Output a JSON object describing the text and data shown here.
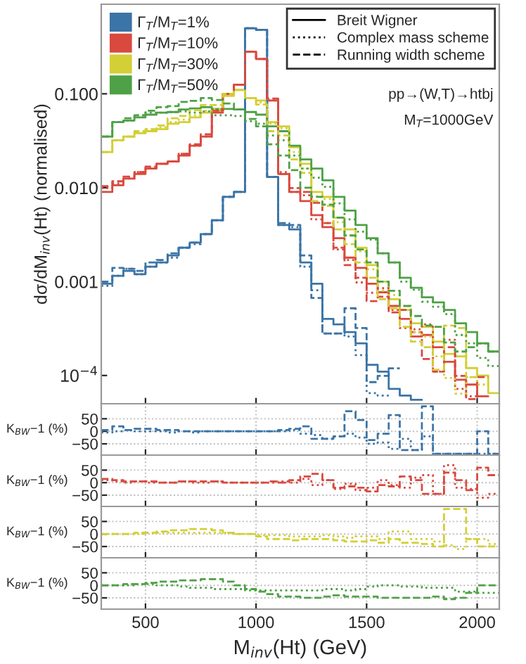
{
  "chart_data": [
    {
      "type": "step",
      "ylabel": "dσ/dM$_{inv}$(Ht) (normalised)",
      "log": "y",
      "legend": "top left",
      "tick_labels": "y",
      "x": [
        300,
        350,
        400,
        450,
        500,
        550,
        600,
        650,
        700,
        750,
        800,
        850,
        900,
        950,
        1000,
        1050,
        1100,
        1150,
        1200,
        1250,
        1300,
        1350,
        1400,
        1450,
        1500,
        1550,
        1600,
        1650,
        1700,
        1750,
        1800,
        1850,
        1900,
        1950,
        2000,
        2050,
        2100
      ],
      "xlim": [
        300,
        2100
      ],
      "xticks": [
        500,
        1000,
        1500,
        2000
      ],
      "ylim": [
        5e-05,
        0.9
      ],
      "yticks": [
        {
          "value": 0.1,
          "label": "0.100"
        },
        {
          "value": 0.01,
          "label": "0.010"
        },
        {
          "value": 0.001,
          "label": "0.001"
        },
        {
          "value": 0.0001,
          "label": "10$^{−4}$"
        }
      ],
      "annotations": [
        "Breit Wigner",
        "Complex mass scheme",
        "Running width scheme",
        "pp→(W,T)→htbj",
        "M$_{T}$=1000GeV"
      ],
      "series": [
        {
          "name": "Γ$_{T}$/M$_{T}$=1%",
          "color": "#3b74a6",
          "line_style": "solid",
          "x": [
            300,
            350,
            400,
            450,
            500,
            550,
            600,
            650,
            700,
            750,
            800,
            850,
            900,
            950,
            1000,
            1050,
            1100,
            1150,
            1200,
            1250,
            1300,
            1350,
            1400,
            1450,
            1500,
            1550,
            1600,
            1650,
            1700,
            1750
          ],
          "values": [
            0.00095,
            0.00115,
            0.0013,
            0.0012,
            0.00144,
            0.0016,
            0.0019,
            0.0023,
            0.0026,
            0.0032,
            0.0045,
            0.008,
            0.009,
            0.5,
            0.48,
            0.013,
            0.004,
            0.0036,
            0.0016,
            0.00095,
            0.0004,
            0.00035,
            0.00029,
            0.00022,
            0.00013,
            0.00011,
            7.2e-05,
            6.1e-05,
            5.5e-05,
            5.5e-05
          ]
        },
        {
          "name": "Γ$_{T}$/M$_{T}$=10%",
          "color": "#d9493e",
          "line_style": "solid",
          "x": [
            300,
            350,
            400,
            450,
            500,
            550,
            600,
            650,
            700,
            750,
            800,
            850,
            900,
            950,
            1000,
            1050,
            1100,
            1150,
            1200,
            1250,
            1300,
            1350,
            1400,
            1450,
            1500,
            1550,
            1600,
            1650,
            1700,
            1750,
            1800,
            1850,
            1900,
            1950,
            2000,
            2050
          ],
          "values": [
            0.009,
            0.0106,
            0.0125,
            0.014,
            0.016,
            0.018,
            0.019,
            0.022,
            0.028,
            0.035,
            0.063,
            0.1,
            0.125,
            0.28,
            0.235,
            0.085,
            0.014,
            0.009,
            0.0072,
            0.0051,
            0.0038,
            0.0029,
            0.0018,
            0.0014,
            0.00095,
            0.00077,
            0.00055,
            0.0004,
            0.00026,
            0.00027,
            0.0002,
            0.00014,
            9e-05,
            8e-05,
            6e-05,
            6e-05
          ]
        },
        {
          "name": "Γ$_{T}$/M$_{T}$=30%",
          "color": "#d3cf36",
          "line_style": "solid",
          "values": [
            0.024,
            0.032,
            0.035,
            0.038,
            0.04,
            0.042,
            0.048,
            0.05,
            0.056,
            0.063,
            0.066,
            0.095,
            0.11,
            0.09,
            0.085,
            0.05,
            0.045,
            0.027,
            0.018,
            0.009,
            0.008,
            0.0048,
            0.0036,
            0.0023,
            0.0015,
            0.001,
            0.00065,
            0.0005,
            0.00036,
            0.00033,
            0.00023,
            0.00017,
            0.00016,
            0.00012,
            0.0001,
            6.5e-05,
            6.5e-05
          ]
        },
        {
          "name": "Γ$_{T}$/M$_{T}$=50%",
          "color": "#4ea146",
          "line_style": "solid",
          "values": [
            0.035,
            0.05,
            0.052,
            0.056,
            0.06,
            0.063,
            0.064,
            0.068,
            0.07,
            0.072,
            0.069,
            0.069,
            0.068,
            0.064,
            0.06,
            0.045,
            0.04,
            0.028,
            0.02,
            0.016,
            0.012,
            0.008,
            0.0057,
            0.004,
            0.0029,
            0.002,
            0.0016,
            0.0011,
            0.00086,
            0.00068,
            0.0006,
            0.0005,
            0.00036,
            0.00029,
            0.00022,
            0.00018,
            0.00018
          ]
        },
        {
          "color": "#3b74a6",
          "line_style": "dotted",
          "x": [
            300,
            350,
            400,
            450,
            500,
            550,
            600,
            650,
            700,
            750,
            800,
            850,
            900,
            950,
            1000,
            1050,
            1100,
            1150,
            1200,
            1250,
            1300,
            1350,
            1400,
            1450,
            1500,
            1550,
            1600
          ],
          "values": [
            0.0009,
            0.00115,
            0.00137,
            0.0012,
            0.00144,
            0.0016,
            0.0018,
            0.0023,
            0.0025,
            0.0032,
            0.0045,
            0.008,
            0.009,
            0.5,
            0.48,
            0.013,
            0.004,
            0.0038,
            0.00144,
            0.00081,
            0.00028,
            0.00028,
            0.00026,
            0.000165,
            6.5e-05,
            6.1e-05,
            6.1e-05
          ]
        },
        {
          "color": "#3b74a6",
          "line_style": "dashed",
          "x": [
            300,
            350,
            400,
            450,
            500,
            550,
            600,
            650,
            700,
            750,
            800,
            850,
            900,
            950,
            1000,
            1050,
            1100,
            1150,
            1200,
            1250,
            1300,
            1350,
            1400,
            1450,
            1500,
            1550,
            1600,
            1650
          ],
          "values": [
            0.001,
            0.0014,
            0.00137,
            0.0013,
            0.0016,
            0.0017,
            0.002,
            0.0023,
            0.0026,
            0.0032,
            0.0045,
            0.008,
            0.009,
            0.5,
            0.48,
            0.013,
            0.0042,
            0.004,
            0.0019,
            0.00067,
            0.00028,
            0.00028,
            0.00052,
            0.00032,
            8.5e-05,
            9.9e-05,
            0.000119,
            0.000119
          ]
        },
        {
          "color": "#d9493e",
          "line_style": "dotted",
          "x": [
            300,
            350,
            400,
            450,
            500,
            550,
            600,
            650,
            700,
            750,
            800,
            850,
            900,
            950,
            1000,
            1050,
            1100,
            1150,
            1200,
            1250,
            1300,
            1350,
            1400,
            1450,
            1500,
            1550,
            1600,
            1650,
            1700,
            1750,
            1800,
            1850,
            1900,
            1950,
            2000
          ],
          "values": [
            0.0099,
            0.0111,
            0.0125,
            0.0147,
            0.016,
            0.018,
            0.019,
            0.023,
            0.028,
            0.035,
            0.066,
            0.1,
            0.125,
            0.28,
            0.235,
            0.085,
            0.0147,
            0.009,
            0.0083,
            0.0046,
            0.0042,
            0.0022,
            0.0017,
            0.00098,
            0.00076,
            0.00085,
            0.0005,
            0.00032,
            0.00031,
            0.00035,
            0.00011,
            0.00024,
            7.2e-05,
            6e-05,
            6e-05
          ]
        },
        {
          "color": "#d9493e",
          "line_style": "dashed",
          "x": [
            300,
            350,
            400,
            450,
            500,
            550,
            600,
            650,
            700,
            750,
            800,
            850,
            900,
            950,
            1000,
            1050,
            1100,
            1150,
            1200,
            1250,
            1300,
            1350,
            1400,
            1450,
            1500,
            1550,
            1600,
            1650,
            1700,
            1750,
            1800,
            1850,
            1900,
            1950,
            2000,
            2050
          ],
          "values": [
            0.0104,
            0.0117,
            0.0131,
            0.0147,
            0.0168,
            0.018,
            0.019,
            0.023,
            0.029,
            0.037,
            0.066,
            0.1,
            0.125,
            0.28,
            0.235,
            0.089,
            0.014,
            0.0099,
            0.009,
            0.0069,
            0.0042,
            0.0023,
            0.0015,
            0.0011,
            0.00062,
            0.00069,
            0.00047,
            0.0005,
            0.00029,
            0.00015,
            0.00011,
            0.0002,
            9.9e-05,
            5.6e-05,
            9.6e-05,
            9.6e-05
          ]
        },
        {
          "color": "#d3cf36",
          "line_style": "dotted",
          "x": [
            300,
            350,
            400,
            450,
            500,
            550,
            600,
            650,
            700,
            750,
            800,
            850,
            900,
            950,
            1000,
            1050,
            1100,
            1150,
            1200,
            1250,
            1300,
            1350,
            1400,
            1450,
            1500,
            1550,
            1600,
            1650,
            1700,
            1750,
            1800,
            1850,
            1900,
            1950,
            2000,
            2050
          ],
          "values": [
            0.024,
            0.032,
            0.035,
            0.038,
            0.042,
            0.044,
            0.05,
            0.053,
            0.059,
            0.066,
            0.069,
            0.1,
            0.11,
            0.09,
            0.081,
            0.048,
            0.043,
            0.024,
            0.016,
            0.0081,
            0.0076,
            0.0043,
            0.0031,
            0.0021,
            0.00135,
            0.0008,
            0.00072,
            0.00055,
            0.00029,
            0.00026,
            0.00016,
            9.4e-05,
            6.4e-05,
            9.6e-05,
            8e-05,
            8e-05
          ]
        },
        {
          "color": "#d3cf36",
          "line_style": "dashed",
          "x": [
            300,
            350,
            400,
            450,
            500,
            550,
            600,
            650,
            700,
            750,
            800,
            850,
            900,
            950,
            1000,
            1050,
            1100,
            1150,
            1200,
            1250,
            1300,
            1350,
            1400,
            1450,
            1500,
            1550,
            1600,
            1650,
            1700,
            1750,
            1800,
            1850,
            1900,
            1950,
            2000
          ],
          "values": [
            0.024,
            0.032,
            0.035,
            0.04,
            0.042,
            0.046,
            0.055,
            0.058,
            0.067,
            0.076,
            0.076,
            0.1,
            0.11,
            0.09,
            0.077,
            0.04,
            0.036,
            0.02,
            0.0144,
            0.0072,
            0.0064,
            0.0036,
            0.0025,
            0.0016,
            0.0011,
            0.00065,
            0.00052,
            0.00033,
            0.00023,
            0.0002,
            0.000115,
            0.00034,
            0.00032,
            9.6e-05,
            9.6e-05
          ]
        },
        {
          "color": "#4ea146",
          "line_style": "dotted",
          "values": [
            0.035,
            0.05,
            0.052,
            0.059,
            0.063,
            0.063,
            0.064,
            0.065,
            0.063,
            0.065,
            0.059,
            0.059,
            0.058,
            0.051,
            0.048,
            0.036,
            0.032,
            0.022,
            0.016,
            0.0128,
            0.0102,
            0.0068,
            0.0046,
            0.0034,
            0.0028,
            0.002,
            0.0016,
            0.001,
            0.00082,
            0.00061,
            0.00054,
            0.00045,
            0.00027,
            0.00022,
            0.000154,
            0.000126,
            0.000126
          ]
        },
        {
          "color": "#4ea146",
          "line_style": "dashed",
          "values": [
            0.035,
            0.05,
            0.055,
            0.059,
            0.066,
            0.072,
            0.074,
            0.082,
            0.084,
            0.09,
            0.086,
            0.079,
            0.068,
            0.054,
            0.045,
            0.029,
            0.022,
            0.0154,
            0.01,
            0.008,
            0.0066,
            0.0048,
            0.0031,
            0.0022,
            0.0016,
            0.001,
            0.0008,
            0.00055,
            0.00043,
            0.00034,
            0.00033,
            0.000225,
            0.00018,
            0.0002,
            0.00022,
            0.00018,
            0.00018
          ]
        }
      ]
    },
    {
      "type": "step",
      "ylabel": "K$_{BW}$−1 (%)",
      "tick_labels": "y",
      "grid": true,
      "x": [
        300,
        350,
        400,
        450,
        500,
        550,
        600,
        650,
        700,
        750,
        800,
        850,
        900,
        950,
        1000,
        1050,
        1100,
        1150,
        1200,
        1250,
        1300,
        1350,
        1400,
        1450,
        1500,
        1550,
        1600,
        1650,
        1700,
        1750,
        1800,
        1850,
        1900,
        1950,
        2000,
        2050,
        2100
      ],
      "xlim": [
        300,
        2100
      ],
      "xticks": [
        500,
        1000,
        1500,
        2000
      ],
      "ylim": [
        -95,
        110
      ],
      "yticks": [
        {
          "value": -50,
          "label": "−50"
        },
        0,
        50
      ],
      "series": [
        {
          "color": "#3b74a6",
          "line_style": "dotted",
          "values": [
            -5,
            0,
            5,
            0,
            0,
            0,
            -5,
            0,
            -5,
            0,
            0,
            0,
            0,
            0,
            0,
            0,
            0,
            5,
            -10,
            -15,
            -30,
            -20,
            -10,
            -25,
            -50,
            -45,
            -70,
            -30,
            -75,
            -20,
            -90,
            -90,
            -90,
            -90,
            -90,
            -90,
            -90
          ]
        },
        {
          "color": "#3b74a6",
          "line_style": "dashed",
          "values": [
            5,
            20,
            5,
            10,
            10,
            5,
            5,
            0,
            0,
            0,
            0,
            0,
            0,
            0,
            0,
            0,
            5,
            10,
            20,
            -30,
            -30,
            -20,
            80,
            45,
            -35,
            -10,
            65,
            -75,
            -75,
            100,
            -90,
            -90,
            -90,
            -90,
            0,
            -90,
            -90
          ]
        }
      ]
    },
    {
      "type": "step",
      "ylabel": "K$_{BW}$−1 (%)",
      "tick_labels": "y",
      "grid": true,
      "x": [
        300,
        350,
        400,
        450,
        500,
        550,
        600,
        650,
        700,
        750,
        800,
        850,
        900,
        950,
        1000,
        1050,
        1100,
        1150,
        1200,
        1250,
        1300,
        1350,
        1400,
        1450,
        1500,
        1550,
        1600,
        1650,
        1700,
        1750,
        1800,
        1850,
        1900,
        1950,
        2000,
        2050,
        2100
      ],
      "xlim": [
        300,
        2100
      ],
      "xticks": [
        500,
        1000,
        1500,
        2000
      ],
      "ylim": [
        -95,
        110
      ],
      "yticks": [
        {
          "value": -50,
          "label": "−50"
        },
        0,
        50
      ],
      "series": [
        {
          "color": "#d9493e",
          "line_style": "dotted",
          "values": [
            10,
            5,
            0,
            5,
            0,
            0,
            0,
            5,
            0,
            0,
            5,
            0,
            0,
            0,
            0,
            0,
            5,
            0,
            15,
            -10,
            10,
            -25,
            -5,
            -30,
            -20,
            10,
            -10,
            -20,
            20,
            30,
            -45,
            70,
            -20,
            -25,
            -60,
            -45,
            -45
          ]
        },
        {
          "color": "#d9493e",
          "line_style": "dashed",
          "values": [
            15,
            10,
            5,
            5,
            5,
            0,
            0,
            5,
            5,
            5,
            5,
            0,
            0,
            0,
            0,
            5,
            0,
            10,
            25,
            35,
            10,
            -20,
            -15,
            -20,
            -35,
            -10,
            -15,
            25,
            10,
            -45,
            -45,
            40,
            10,
            -30,
            60,
            30,
            30
          ]
        }
      ]
    },
    {
      "type": "step",
      "ylabel": "K$_{BW}$−1 (%)",
      "tick_labels": "y",
      "grid": true,
      "x": [
        300,
        350,
        400,
        450,
        500,
        550,
        600,
        650,
        700,
        750,
        800,
        850,
        900,
        950,
        1000,
        1050,
        1100,
        1150,
        1200,
        1250,
        1300,
        1350,
        1400,
        1450,
        1500,
        1550,
        1600,
        1650,
        1700,
        1750,
        1800,
        1850,
        1900,
        1950,
        2000,
        2050,
        2100
      ],
      "xlim": [
        300,
        2100
      ],
      "xticks": [
        500,
        1000,
        1500,
        2000
      ],
      "ylim": [
        -95,
        110
      ],
      "yticks": [
        {
          "value": -50,
          "label": "−50"
        },
        0,
        50
      ],
      "series": [
        {
          "color": "#d3cf36",
          "line_style": "dotted",
          "values": [
            0,
            0,
            0,
            0,
            5,
            5,
            5,
            5,
            5,
            5,
            5,
            5,
            0,
            0,
            -5,
            -5,
            -5,
            -10,
            -10,
            -10,
            -5,
            -10,
            -15,
            -10,
            -10,
            -20,
            10,
            10,
            -20,
            -20,
            -30,
            -45,
            -60,
            -20,
            -20,
            -40,
            -40
          ]
        },
        {
          "color": "#d3cf36",
          "line_style": "dashed",
          "values": [
            0,
            0,
            0,
            5,
            5,
            10,
            15,
            15,
            20,
            20,
            15,
            5,
            0,
            0,
            -10,
            -20,
            -20,
            -25,
            -20,
            -20,
            -20,
            -25,
            -30,
            -30,
            -25,
            -35,
            -20,
            -35,
            -35,
            -40,
            -50,
            100,
            100,
            -20,
            -50,
            -50,
            -50
          ]
        }
      ]
    },
    {
      "type": "step",
      "ylabel": "K$_{BW}$−1 (%)",
      "xlabel": "M$_{inv}$(Ht) (GeV)",
      "grid": true,
      "x": [
        300,
        350,
        400,
        450,
        500,
        550,
        600,
        650,
        700,
        750,
        800,
        850,
        900,
        950,
        1000,
        1050,
        1100,
        1150,
        1200,
        1250,
        1300,
        1350,
        1400,
        1450,
        1500,
        1550,
        1600,
        1650,
        1700,
        1750,
        1800,
        1850,
        1900,
        1950,
        2000,
        2050,
        2100
      ],
      "xlim": [
        300,
        2100
      ],
      "xticks": [
        500,
        1000,
        1500,
        2000
      ],
      "ylim": [
        -95,
        110
      ],
      "yticks": [
        {
          "value": -50,
          "label": "−50"
        },
        0,
        50
      ],
      "series": [
        {
          "color": "#4ea146",
          "line_style": "dotted",
          "values": [
            0,
            0,
            0,
            5,
            5,
            0,
            0,
            -5,
            -10,
            -10,
            -15,
            -15,
            -15,
            -20,
            -20,
            -20,
            -20,
            -20,
            -20,
            -20,
            -15,
            -15,
            -20,
            -15,
            -5,
            0,
            0,
            -5,
            -5,
            -10,
            -10,
            -10,
            -25,
            -25,
            -30,
            -30,
            -30
          ]
        },
        {
          "color": "#4ea146",
          "line_style": "dashed",
          "values": [
            0,
            0,
            5,
            5,
            10,
            15,
            15,
            20,
            20,
            25,
            25,
            15,
            0,
            -15,
            -25,
            -35,
            -45,
            -45,
            -50,
            -50,
            -45,
            -40,
            -45,
            -45,
            -45,
            -50,
            -50,
            -50,
            -50,
            -50,
            -45,
            -55,
            -50,
            -30,
            0,
            0,
            0
          ]
        }
      ]
    }
  ]
}
